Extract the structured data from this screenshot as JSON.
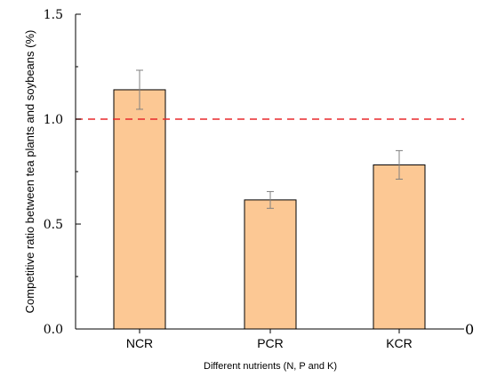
{
  "chart_data": {
    "type": "bar",
    "categories": [
      "NCR",
      "PCR",
      "KCR"
    ],
    "values": [
      1.14,
      0.615,
      0.782
    ],
    "errors": [
      0.093,
      0.04,
      0.068
    ],
    "xlabel": "Different nutrients (N, P and K)",
    "ylabel": "Competitive ratio between tea plants and soybeans (%)",
    "ylim": [
      0,
      1.5
    ],
    "yticks": [
      0,
      0.5,
      1.0,
      1.5
    ],
    "ytick_labels": [
      "0.0",
      "0.5",
      "1.0",
      "1.5"
    ],
    "reference_line": 1.0,
    "x_axis_end_label": "0",
    "colors": {
      "bar_fill": "#FCC894",
      "bar_stroke": "#000000",
      "error_bar": "#808080",
      "reference_line": "#E8282B",
      "axis": "#000000"
    },
    "grid": false,
    "legend": "none"
  }
}
